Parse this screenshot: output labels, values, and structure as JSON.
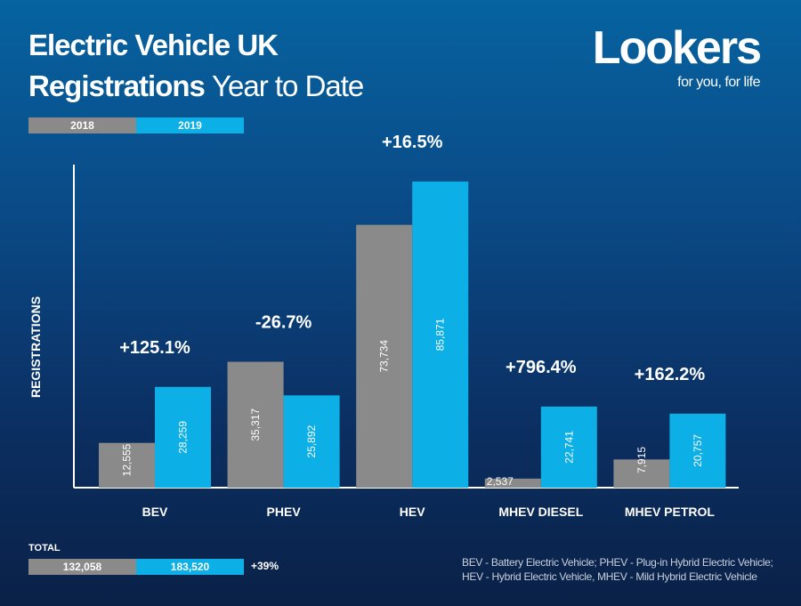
{
  "title": {
    "line1": "Electric Vehicle UK",
    "line2_bold": "Registrations",
    "line2_light": "Year to Date"
  },
  "logo": {
    "brand": "Lookers",
    "tagline": "for you, for life"
  },
  "colors": {
    "2018": "#8a8a8a",
    "2019": "#0db0e6",
    "background_top": "#0663a0",
    "background_bottom": "#0a2147"
  },
  "chart_data": {
    "type": "bar",
    "title": "Electric Vehicle UK Registrations Year to Date",
    "ylabel": "REGISTRATIONS",
    "xlabel": "",
    "ylim": [
      0,
      90000
    ],
    "grid": false,
    "legend": "top-left",
    "categories": [
      "BEV",
      "PHEV",
      "HEV",
      "MHEV DIESEL",
      "MHEV PETROL"
    ],
    "series": [
      {
        "name": "2018",
        "values": [
          12555,
          35317,
          73734,
          2537,
          7915
        ],
        "labels": [
          "12,555",
          "35,317",
          "73,734",
          "2,537",
          "7,915"
        ]
      },
      {
        "name": "2019",
        "values": [
          28259,
          25892,
          85871,
          22741,
          20757
        ],
        "labels": [
          "28,259",
          "25,892",
          "85,871",
          "22,741",
          "20,757"
        ]
      }
    ],
    "changes": [
      "+125.1%",
      "-26.7%",
      "+16.5%",
      "+796.4%",
      "+162.2%"
    ]
  },
  "totals": {
    "label": "TOTAL",
    "2018": "132,058",
    "2019": "183,520",
    "change": "+39%"
  },
  "footnote": {
    "line1": "BEV - Battery Electric Vehicle; PHEV - Plug-in Hybrid Electric Vehicle;",
    "line2": "HEV - Hybrid Electric Vehicle, MHEV - Mild Hybrid Electric Vehicle"
  }
}
